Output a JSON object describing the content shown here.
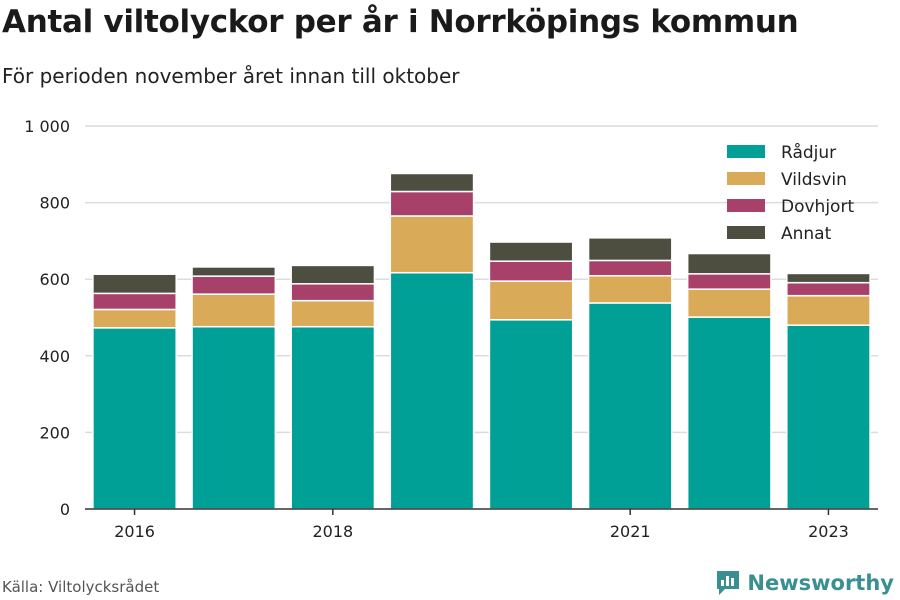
{
  "title": "Antal viltolyckor per år i Norrköpings kommun",
  "subtitle": "För perioden november året innan till oktober",
  "source": "Källa: Viltolycksrådet",
  "brand": "Newsworthy",
  "colors": {
    "Rådjur": "#00a096",
    "Vildsvin": "#d9aa58",
    "Dovhjort": "#a8416a",
    "Annat": "#4d4d40",
    "brand": "#3a8f92"
  },
  "chart_data": {
    "type": "bar",
    "stacked": true,
    "categories": [
      "2016",
      "2017",
      "2018",
      "2019",
      "2020",
      "2021",
      "2022",
      "2023"
    ],
    "x_tick_labels": [
      "2016",
      "",
      "2018",
      "",
      "",
      "2021",
      "",
      "2023"
    ],
    "series": [
      {
        "name": "Rådjur",
        "values": [
          473,
          476,
          476,
          617,
          494,
          538,
          501,
          480
        ]
      },
      {
        "name": "Vildsvin",
        "values": [
          48,
          85,
          68,
          148,
          101,
          71,
          73,
          77
        ]
      },
      {
        "name": "Dovhjort",
        "values": [
          42,
          47,
          44,
          64,
          52,
          40,
          40,
          34
        ]
      },
      {
        "name": "Annat",
        "values": [
          50,
          24,
          48,
          47,
          50,
          59,
          53,
          24
        ]
      }
    ],
    "ylim": [
      0,
      1000
    ],
    "yticks": [
      0,
      200,
      400,
      600,
      800,
      1000
    ],
    "ytick_labels": [
      "0",
      "200",
      "400",
      "600",
      "800",
      "1 000"
    ],
    "grid": true,
    "legend": "top-right"
  }
}
